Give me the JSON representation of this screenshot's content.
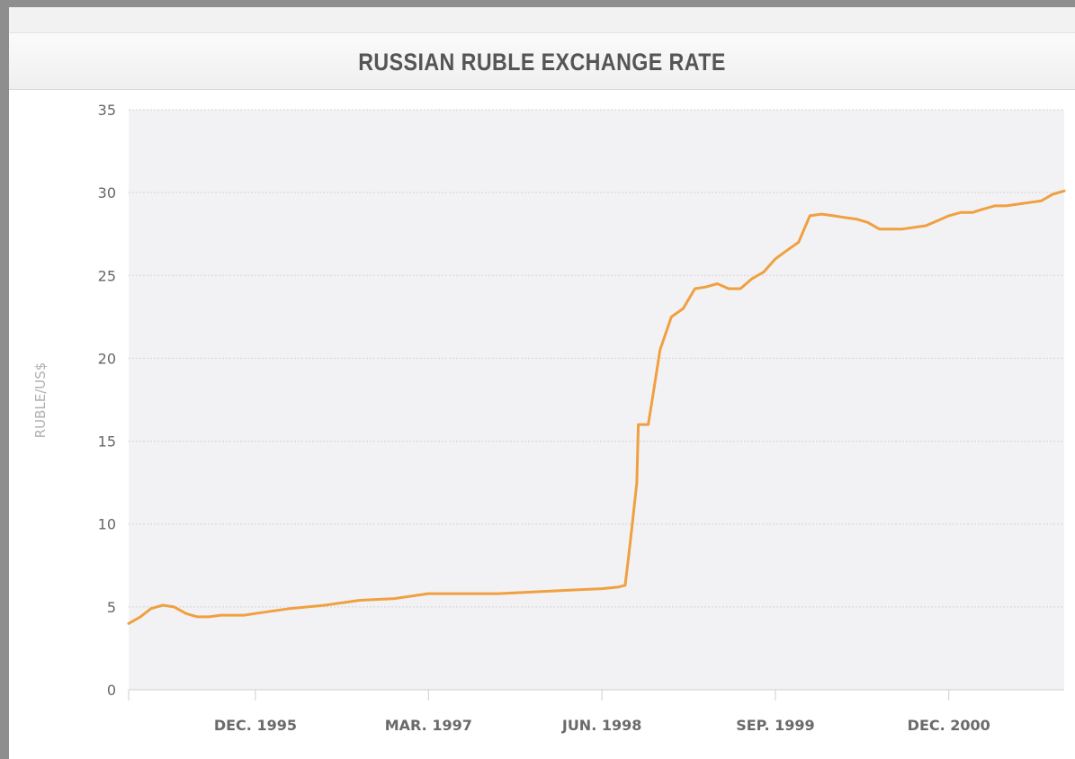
{
  "chart_data": {
    "type": "line",
    "title": "RUSSIAN RUBLE EXCHANGE RATE",
    "ylabel": "RUBLE/US$",
    "xlabel": "",
    "ylim": [
      0,
      35
    ],
    "yticks": [
      0,
      5,
      10,
      15,
      20,
      25,
      30,
      35
    ],
    "xlim": [
      "1995-01-01",
      "2001-10-01"
    ],
    "xticks": [
      {
        "date": "1995-12-01",
        "label": "DEC. 1995"
      },
      {
        "date": "1997-03-01",
        "label": "MAR. 1997"
      },
      {
        "date": "1998-06-01",
        "label": "JUN. 1998"
      },
      {
        "date": "1999-09-01",
        "label": "SEP. 1999"
      },
      {
        "date": "2000-12-01",
        "label": "DEC. 2000"
      }
    ],
    "grid": true,
    "line_color": "#f0a040",
    "series": [
      {
        "x": [
          "1995-01-01",
          "1995-02-01",
          "1995-03-01",
          "1995-04-01",
          "1995-05-01",
          "1995-06-01",
          "1995-07-01",
          "1995-08-01",
          "1995-09-01",
          "1995-10-01",
          "1995-11-01",
          "1995-12-01",
          "1996-03-01",
          "1996-06-01",
          "1996-09-01",
          "1996-12-01",
          "1997-03-01",
          "1997-06-01",
          "1997-09-01",
          "1997-12-01",
          "1998-03-01",
          "1998-06-01",
          "1998-07-15",
          "1998-08-01",
          "1998-08-10",
          "1998-08-20",
          "1998-09-01",
          "1998-09-05",
          "1998-09-15",
          "1998-10-01",
          "1998-10-15",
          "1998-11-01",
          "1998-12-01",
          "1999-01-01",
          "1999-02-01",
          "1999-03-01",
          "1999-04-01",
          "1999-05-01",
          "1999-06-01",
          "1999-07-01",
          "1999-08-01",
          "1999-09-01",
          "1999-10-01",
          "1999-11-01",
          "1999-12-01",
          "2000-01-01",
          "2000-02-01",
          "2000-03-01",
          "2000-04-01",
          "2000-05-01",
          "2000-06-01",
          "2000-07-01",
          "2000-08-01",
          "2000-09-01",
          "2000-10-01",
          "2000-11-01",
          "2000-12-01",
          "2001-01-01",
          "2001-02-01",
          "2001-03-01",
          "2001-04-01",
          "2001-05-01",
          "2001-06-01",
          "2001-07-01",
          "2001-08-01",
          "2001-09-01",
          "2001-10-01"
        ],
        "y": [
          4.0,
          4.4,
          4.9,
          5.1,
          5.0,
          4.6,
          4.4,
          4.4,
          4.5,
          4.5,
          4.5,
          4.6,
          4.9,
          5.1,
          5.4,
          5.5,
          5.8,
          5.8,
          5.8,
          5.9,
          6.0,
          6.1,
          6.2,
          6.3,
          8.0,
          10.0,
          12.5,
          16.0,
          16.0,
          16.0,
          18.0,
          20.5,
          22.5,
          23.0,
          24.2,
          24.3,
          24.5,
          24.2,
          24.2,
          24.8,
          25.2,
          26.0,
          26.5,
          27.0,
          28.6,
          28.7,
          28.6,
          28.5,
          28.4,
          28.2,
          27.8,
          27.8,
          27.8,
          27.9,
          28.0,
          28.3,
          28.6,
          28.8,
          28.8,
          29.0,
          29.2,
          29.2,
          29.3,
          29.4,
          29.5,
          29.9,
          30.1
        ]
      }
    ]
  }
}
